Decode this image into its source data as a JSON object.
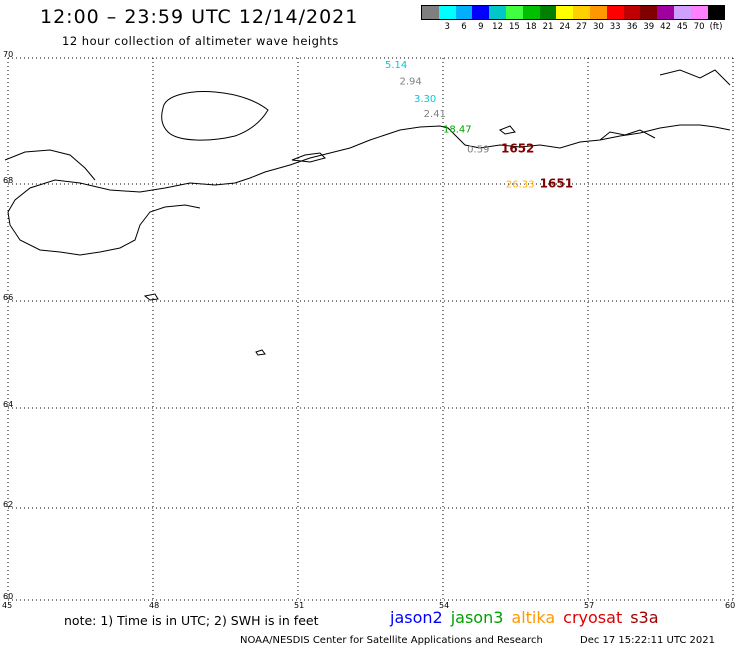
{
  "header": {
    "title": "12:00 – 23:59 UTC 12/14/2021",
    "subtitle": "12 hour collection of altimeter wave heights"
  },
  "legend": {
    "swatches": [
      {
        "label": "",
        "color": "#7f7f7f"
      },
      {
        "label": "3",
        "color": "#00ffff"
      },
      {
        "label": "6",
        "color": "#00b0ff"
      },
      {
        "label": "9",
        "color": "#0000ff"
      },
      {
        "label": "12",
        "color": "#00c8c8"
      },
      {
        "label": "15",
        "color": "#40ff40"
      },
      {
        "label": "18",
        "color": "#00c000"
      },
      {
        "label": "21",
        "color": "#008000"
      },
      {
        "label": "24",
        "color": "#ffff00"
      },
      {
        "label": "27",
        "color": "#ffd000"
      },
      {
        "label": "30",
        "color": "#ff9800"
      },
      {
        "label": "33",
        "color": "#ff0000"
      },
      {
        "label": "36",
        "color": "#c00000"
      },
      {
        "label": "39",
        "color": "#800000"
      },
      {
        "label": "42",
        "color": "#a000a0"
      },
      {
        "label": "45",
        "color": "#d0a0ff"
      },
      {
        "label": "70",
        "color": "#ff80ff"
      },
      {
        "label": "(ft)",
        "color": "#000000"
      }
    ]
  },
  "map": {
    "lat_labels": [
      "70",
      "68",
      "66",
      "64",
      "62",
      "60"
    ],
    "lon_labels": [
      "45",
      "48",
      "51",
      "54",
      "57",
      "60"
    ],
    "observations": [
      {
        "text": "5.14",
        "color": "#00c8e0",
        "lat": 69.84,
        "lon": 52.8
      },
      {
        "text": "2.94",
        "color": "#7f7f7f",
        "lat": 69.58,
        "lon": 53.1
      },
      {
        "text": "3.30",
        "color": "#00c8e0",
        "lat": 69.3,
        "lon": 53.4
      },
      {
        "text": "2.41",
        "color": "#7f7f7f",
        "lat": 69.06,
        "lon": 53.6
      },
      {
        "text": "18.47",
        "color": "#00a000",
        "lat": 68.82,
        "lon": 54.0
      },
      {
        "text": "0.59",
        "color": "#7f7f7f",
        "lat": 68.5,
        "lon": 54.5
      },
      {
        "text": "1652",
        "color": "#800000",
        "lat": 68.5,
        "lon": 55.2,
        "bold": true
      },
      {
        "text": "26.33",
        "color": "#ffb000",
        "lat": 67.94,
        "lon": 55.3
      },
      {
        "text": "1651",
        "color": "#800000",
        "lat": 67.94,
        "lon": 56.0,
        "bold": true
      }
    ]
  },
  "footer": {
    "note": "note: 1) Time is in UTC; 2) SWH is in feet",
    "satellites": [
      {
        "name": "jason2",
        "color": "#0000ff"
      },
      {
        "name": "jason3",
        "color": "#00a000"
      },
      {
        "name": "altika",
        "color": "#ff9800"
      },
      {
        "name": "cryosat",
        "color": "#e00000"
      },
      {
        "name": "s3a",
        "color": "#a00000"
      }
    ],
    "credit": "NOAA/NESDIS Center for Satellite Applications and Research",
    "timestamp": "Dec 17 15:22:11 UTC 2021"
  }
}
